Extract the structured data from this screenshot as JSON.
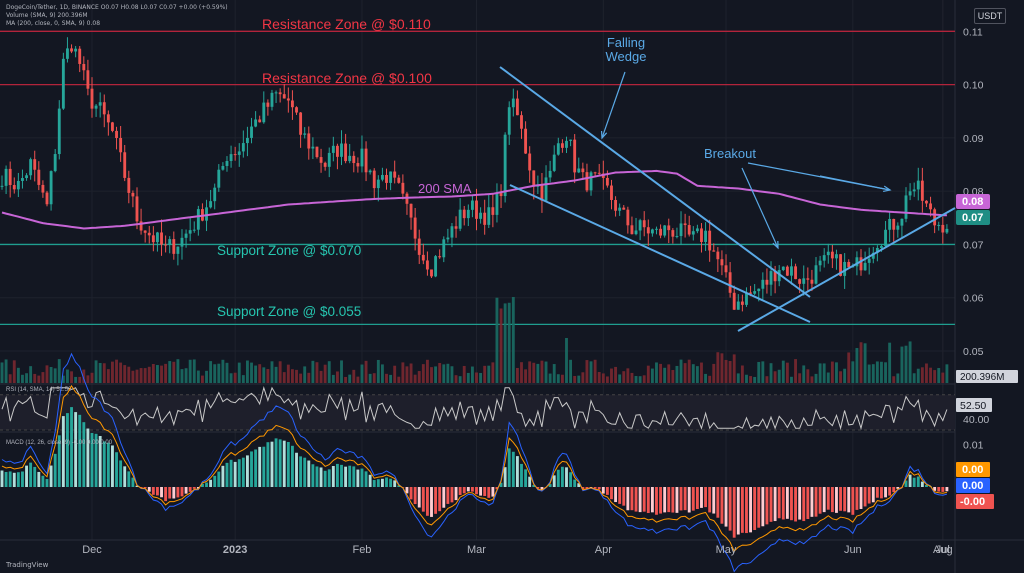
{
  "header": {
    "symbol_line": "DogeCoin/Tether, 1D, BINANCE  O0.07 H0.08 L0.07 C0.07 +0.00 (+0.59%)",
    "volume_line": "Volume (SMA, 9)  200.396M",
    "ma_line": "MA (200, close, 0, SMA, 9)  0.08",
    "currency": "USDT"
  },
  "brand": "TradingView",
  "colors": {
    "background": "#131722",
    "up": "#26a69a",
    "down": "#ef5350",
    "resistance_line": "#b2243b",
    "resistance_text": "#f23645",
    "support_line": "#1f9e8f",
    "support_text": "#26c6b0",
    "sma": "#c765d6",
    "trendline": "#5aa9e6",
    "rsi": "#c8c8c8",
    "macd": "#2962ff",
    "signal": "#ff9800"
  },
  "chart_data": [
    {
      "type": "candlestick",
      "x_ticks": [
        "Dec",
        "2023",
        "Feb",
        "Mar",
        "Apr",
        "May",
        "Jun",
        "Jul",
        "Aug"
      ],
      "y_ticks": [
        "0.11",
        "0.10",
        "0.09",
        "0.08",
        "0.07",
        "0.06",
        "0.05"
      ],
      "ylim": [
        0.044,
        0.114
      ],
      "last_price": "0.07",
      "sma_value": "0.08",
      "volume_label": "200.396M",
      "price_path": [
        [
          0,
          0.083
        ],
        [
          4,
          0.081
        ],
        [
          7,
          0.085
        ],
        [
          11,
          0.077
        ],
        [
          13,
          0.088
        ],
        [
          15,
          0.104
        ],
        [
          17,
          0.108
        ],
        [
          19,
          0.104
        ],
        [
          21,
          0.098
        ],
        [
          24,
          0.095
        ],
        [
          27,
          0.091
        ],
        [
          30,
          0.083
        ],
        [
          33,
          0.075
        ],
        [
          36,
          0.072
        ],
        [
          40,
          0.069
        ],
        [
          44,
          0.071
        ],
        [
          48,
          0.075
        ],
        [
          52,
          0.08
        ],
        [
          55,
          0.087
        ],
        [
          58,
          0.088
        ],
        [
          61,
          0.092
        ],
        [
          64,
          0.095
        ],
        [
          67,
          0.098
        ],
        [
          70,
          0.097
        ],
        [
          73,
          0.091
        ],
        [
          76,
          0.088
        ],
        [
          79,
          0.085
        ],
        [
          82,
          0.088
        ],
        [
          85,
          0.087
        ],
        [
          88,
          0.086
        ],
        [
          91,
          0.082
        ],
        [
          94,
          0.083
        ],
        [
          97,
          0.08
        ],
        [
          100,
          0.074
        ],
        [
          103,
          0.068
        ],
        [
          105,
          0.066
        ],
        [
          108,
          0.07
        ],
        [
          111,
          0.074
        ],
        [
          114,
          0.077
        ],
        [
          117,
          0.076
        ],
        [
          120,
          0.075
        ],
        [
          122,
          0.081
        ],
        [
          124,
          0.097
        ],
        [
          126,
          0.094
        ],
        [
          128,
          0.088
        ],
        [
          130,
          0.082
        ],
        [
          132,
          0.08
        ],
        [
          134,
          0.083
        ],
        [
          136,
          0.089
        ],
        [
          138,
          0.091
        ],
        [
          140,
          0.085
        ],
        [
          142,
          0.082
        ],
        [
          145,
          0.082
        ],
        [
          148,
          0.08
        ],
        [
          151,
          0.076
        ],
        [
          154,
          0.073
        ],
        [
          157,
          0.073
        ],
        [
          160,
          0.072
        ],
        [
          163,
          0.073
        ],
        [
          166,
          0.072
        ],
        [
          169,
          0.071
        ],
        [
          172,
          0.072
        ],
        [
          175,
          0.067
        ],
        [
          177,
          0.063
        ],
        [
          179,
          0.059
        ],
        [
          181,
          0.06
        ],
        [
          184,
          0.061
        ],
        [
          187,
          0.063
        ],
        [
          190,
          0.066
        ],
        [
          193,
          0.065
        ],
        [
          196,
          0.063
        ],
        [
          199,
          0.065
        ],
        [
          202,
          0.067
        ],
        [
          205,
          0.066
        ],
        [
          208,
          0.065
        ],
        [
          211,
          0.068
        ],
        [
          214,
          0.071
        ],
        [
          217,
          0.073
        ],
        [
          220,
          0.076
        ],
        [
          222,
          0.081
        ],
        [
          224,
          0.08
        ],
        [
          226,
          0.077
        ],
        [
          228,
          0.074
        ],
        [
          230,
          0.074
        ]
      ],
      "sma_path": [
        [
          0,
          0.076
        ],
        [
          10,
          0.074
        ],
        [
          20,
          0.073
        ],
        [
          30,
          0.0735
        ],
        [
          40,
          0.0745
        ],
        [
          50,
          0.0755
        ],
        [
          60,
          0.0765
        ],
        [
          70,
          0.0775
        ],
        [
          80,
          0.078
        ],
        [
          90,
          0.0785
        ],
        [
          100,
          0.0788
        ],
        [
          110,
          0.079
        ],
        [
          120,
          0.0795
        ],
        [
          130,
          0.081
        ],
        [
          140,
          0.082
        ],
        [
          150,
          0.0835
        ],
        [
          160,
          0.0838
        ],
        [
          165,
          0.0833
        ],
        [
          170,
          0.081
        ],
        [
          180,
          0.0805
        ],
        [
          190,
          0.0795
        ],
        [
          200,
          0.0775
        ],
        [
          210,
          0.0765
        ],
        [
          220,
          0.076
        ],
        [
          230,
          0.0755
        ]
      ]
    },
    {
      "type": "line",
      "title": "RSI (14, SMA, 14)  52.50",
      "y_ticks": [
        "40.00"
      ],
      "ylim": [
        30,
        80
      ],
      "value_label": "52.50"
    },
    {
      "type": "bar",
      "title": "MACD (12, 26, close, 9)  -0.00  0.00  0.00",
      "y_ticks": [
        "0.01"
      ],
      "ylim": [
        -0.006,
        0.006
      ],
      "value_labels": [
        "0.00",
        "0.00",
        "-0.00"
      ]
    }
  ],
  "annotations": {
    "resistance_high": "Resistance Zone @ $0.110",
    "resistance_low": "Resistance Zone @ $0.100",
    "support_high": "Support Zone @ $0.070",
    "support_low": "Support Zone @ $0.055",
    "sma_label": "200 SMA",
    "falling_wedge": "Falling Wedge",
    "breakout": "Breakout"
  },
  "levels": {
    "resistance_high": 0.11,
    "resistance_low": 0.1,
    "support_high": 0.07,
    "support_low": 0.055
  }
}
